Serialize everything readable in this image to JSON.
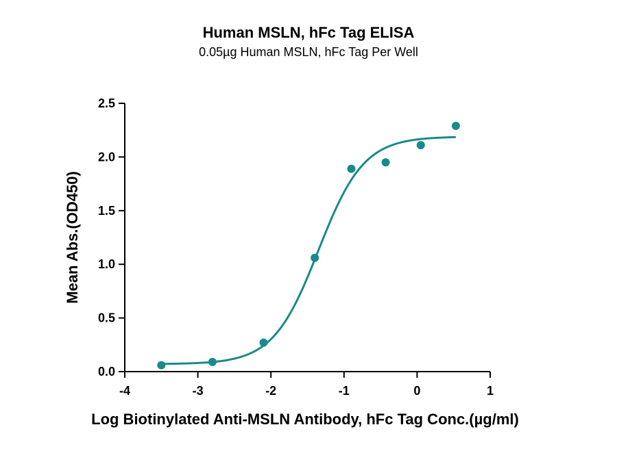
{
  "chart_data": {
    "type": "scatter",
    "title": "Human MSLN, hFc Tag ELISA",
    "subtitle": "0.05µg Human MSLN, hFc Tag Per Well",
    "xlabel": "Log Biotinylated Anti-MSLN Antibody, hFc Tag Conc.(µg/ml)",
    "ylabel": "Mean Abs.(OD450)",
    "xlim": [
      -4,
      1
    ],
    "ylim": [
      0,
      2.5
    ],
    "x_ticks": [
      -4,
      -3,
      -2,
      -1,
      0,
      1
    ],
    "x_tick_labels": [
      "-4",
      "-3",
      "-2",
      "-1",
      "0",
      "1"
    ],
    "y_ticks": [
      0,
      0.5,
      1,
      1.5,
      2,
      2.5
    ],
    "y_tick_labels": [
      "0.0",
      "0.5",
      "1.0",
      "1.5",
      "2.0",
      "2.5"
    ],
    "grid": false,
    "color": "#1a8a8a",
    "series": [
      {
        "x": [
          -3.5,
          -2.8,
          -2.1,
          -1.4,
          -0.9,
          -0.43,
          0.05,
          0.53
        ],
        "y": [
          0.06,
          0.09,
          0.27,
          1.06,
          1.89,
          1.95,
          2.11,
          2.29
        ]
      }
    ],
    "fit_curve": {
      "model": "4PL",
      "bottom": 0.07,
      "top": 2.19,
      "log_ec50": -1.35,
      "hill_slope": 1.4
    }
  }
}
